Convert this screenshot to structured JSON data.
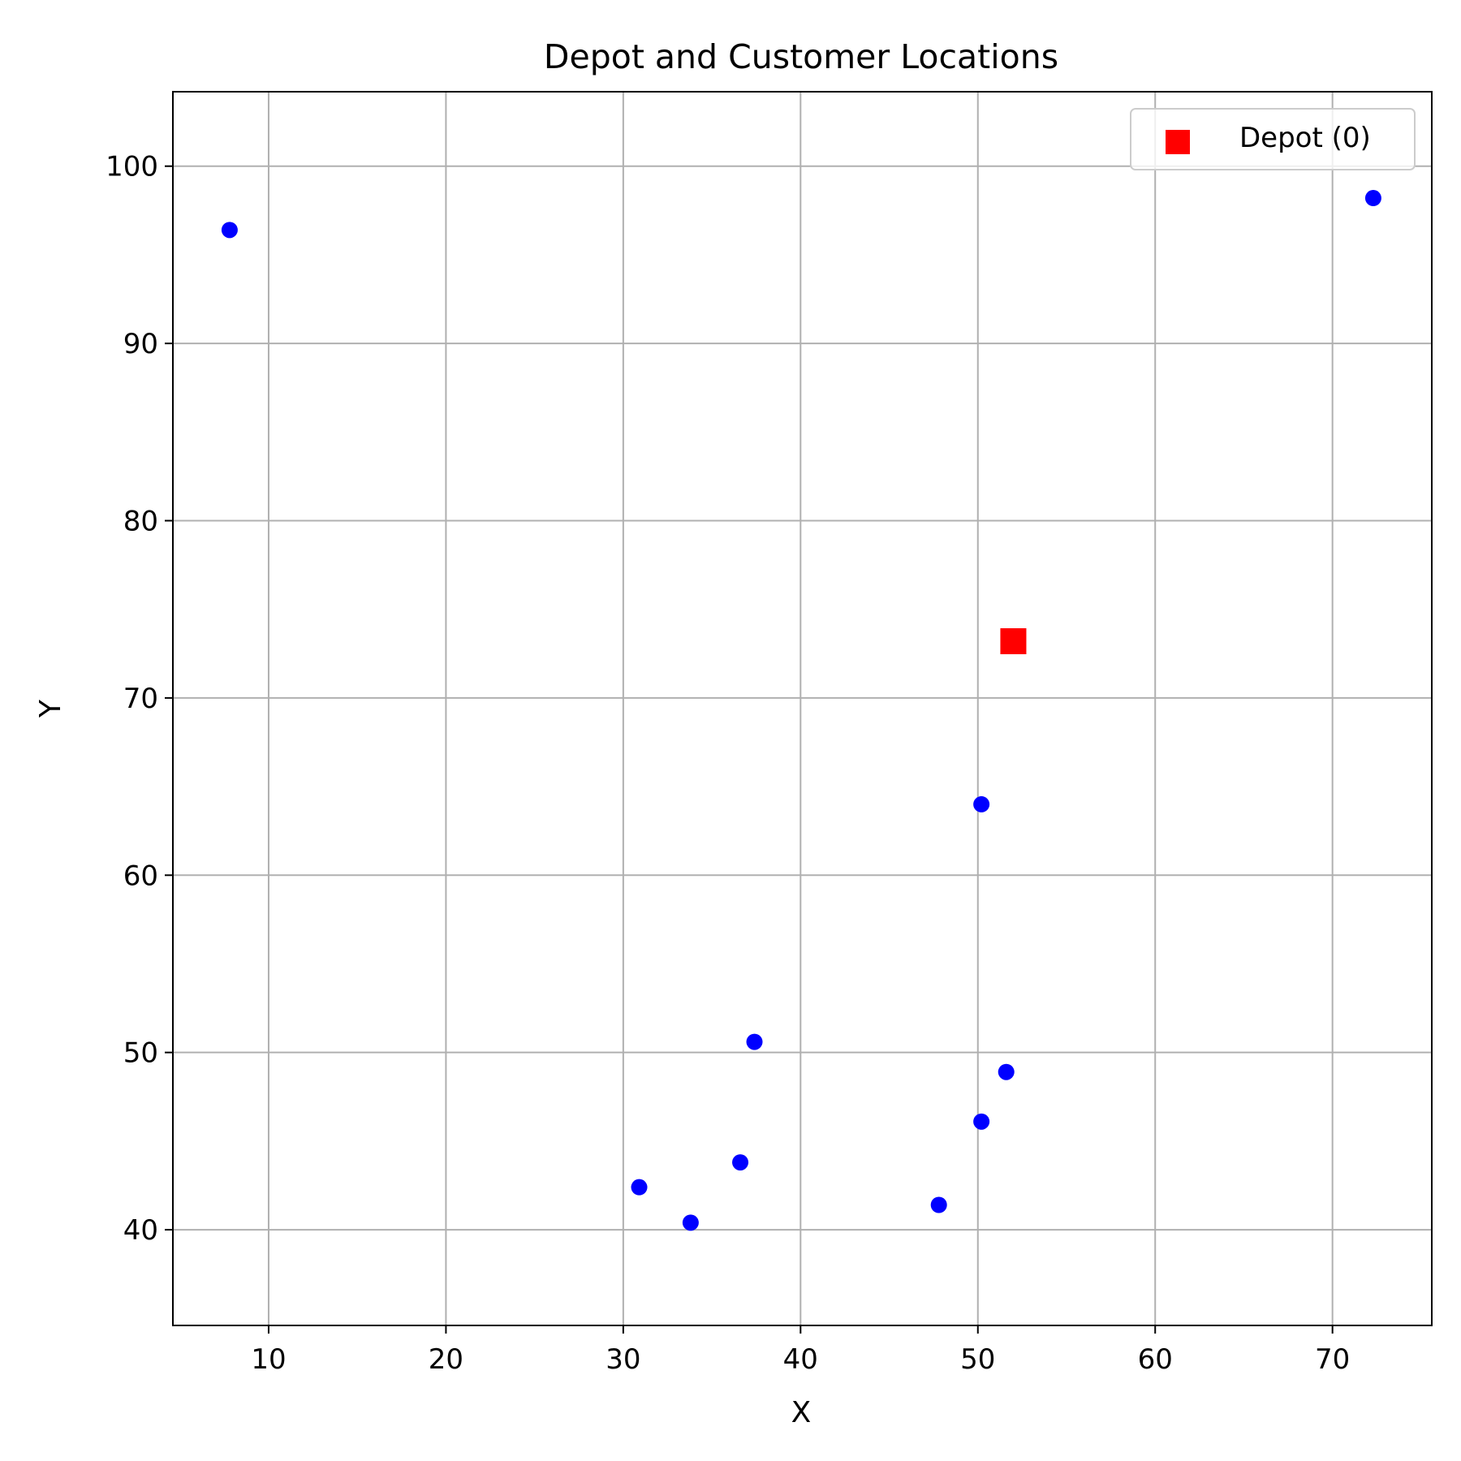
{
  "chart_data": {
    "type": "scatter",
    "title": "Depot and Customer Locations",
    "xlabel": "X",
    "ylabel": "Y",
    "xlim": [
      4.6,
      75.6
    ],
    "ylim": [
      34.6,
      104.2
    ],
    "xticks": [
      10,
      20,
      30,
      40,
      50,
      60,
      70
    ],
    "yticks": [
      40,
      50,
      60,
      70,
      80,
      90,
      100
    ],
    "grid": true,
    "legend_position": "top-right",
    "series": [
      {
        "name": "Depot (0)",
        "marker": "square",
        "color": "#ff0000",
        "in_legend": true,
        "points": [
          {
            "x": 52.0,
            "y": 73.2
          }
        ]
      },
      {
        "marker": "circle",
        "color": "#0000ff",
        "in_legend": false,
        "points": [
          {
            "x": 7.8,
            "y": 96.4
          },
          {
            "x": 72.3,
            "y": 98.2
          },
          {
            "x": 50.2,
            "y": 64.0
          },
          {
            "x": 37.4,
            "y": 50.6
          },
          {
            "x": 51.6,
            "y": 48.9
          },
          {
            "x": 50.2,
            "y": 46.1
          },
          {
            "x": 36.6,
            "y": 43.8
          },
          {
            "x": 30.9,
            "y": 42.4
          },
          {
            "x": 33.8,
            "y": 40.4
          },
          {
            "x": 47.8,
            "y": 41.4
          }
        ]
      }
    ]
  }
}
